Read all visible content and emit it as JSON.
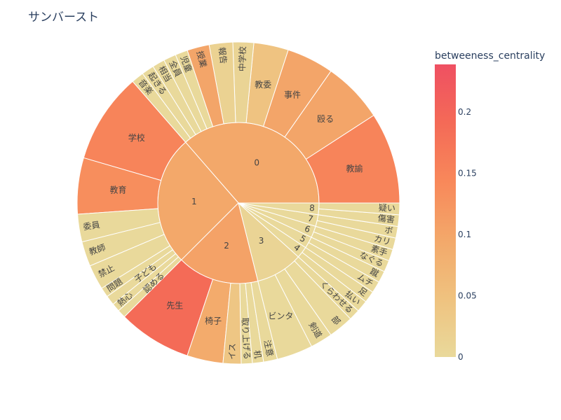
{
  "chart_data": {
    "type": "sunburst",
    "title": "サンバースト",
    "colorbar": {
      "title": "betweeness_centrality",
      "range": [
        0,
        0.239
      ],
      "ticks": [
        0,
        0.05,
        0.1,
        0.15,
        0.2
      ],
      "tick_labels": [
        "0",
        "0.05",
        "0.1",
        "0.15",
        "0.2"
      ],
      "colors": [
        "#e9d99b",
        "#efc27f",
        "#f3a86a",
        "#f8885a",
        "#f46a57",
        "#ef5062"
      ]
    },
    "groups": [
      {
        "label": "0",
        "value_color": 0.095,
        "children": [
          {
            "label": "教諭",
            "value": 33,
            "color_value": 0.15
          },
          {
            "label": "殴る",
            "value": 22,
            "color_value": 0.1
          },
          {
            "label": "事件",
            "value": 17,
            "color_value": 0.1
          },
          {
            "label": "教委",
            "value": 12.5,
            "color_value": 0.045
          },
          {
            "label": "中学校",
            "value": 7.5,
            "color_value": 0.01
          },
          {
            "label": "報告",
            "value": 8.5,
            "color_value": 0.015
          },
          {
            "label": "授業",
            "value": 8,
            "color_value": 0.1
          },
          {
            "label": "児童",
            "value": 4.5,
            "color_value": 0
          },
          {
            "label": "全員",
            "value": 4.5,
            "color_value": 0
          },
          {
            "label": "相当",
            "value": 4.5,
            "color_value": 0
          },
          {
            "label": "起きる",
            "value": 4.5,
            "color_value": 0
          },
          {
            "label": "音楽",
            "value": 4.5,
            "color_value": 0
          }
        ]
      },
      {
        "label": "1",
        "value_color": 0.095,
        "children": [
          {
            "label": "学校",
            "value": 32.7,
            "color_value": 0.15
          },
          {
            "label": "教育",
            "value": 20.3,
            "color_value": 0.135
          },
          {
            "label": "委員",
            "value": 10,
            "color_value": 0
          },
          {
            "label": "教師",
            "value": 9,
            "color_value": 0
          },
          {
            "label": "禁止",
            "value": 9,
            "color_value": 0
          },
          {
            "label": "問題",
            "value": 3.5,
            "color_value": 0
          },
          {
            "label": "子ども",
            "value": 3.5,
            "color_value": 0
          },
          {
            "label": "熱心",
            "value": 3,
            "color_value": 0
          },
          {
            "label": "認める",
            "value": 3,
            "color_value": 0
          }
        ]
      },
      {
        "label": "2",
        "value_color": 0.105,
        "children": [
          {
            "label": "先生",
            "value": 26.5,
            "color_value": 0.19
          },
          {
            "label": "椅子",
            "value": 13,
            "color_value": 0.09
          },
          {
            "label": "イス",
            "value": 6.5,
            "color_value": 0.04
          },
          {
            "label": "取り上げる",
            "value": 4,
            "color_value": 0
          },
          {
            "label": "机",
            "value": 4,
            "color_value": 0
          },
          {
            "label": "注意",
            "value": 5,
            "color_value": 0
          }
        ]
      },
      {
        "label": "3",
        "value_color": 0.01,
        "children": [
          {
            "label": "ビンタ",
            "value": 13,
            "color_value": 0
          },
          {
            "label": "剣道",
            "value": 8,
            "color_value": 0
          },
          {
            "label": "部",
            "value": 9,
            "color_value": 0
          },
          {
            "label": "くらわせる",
            "value": 4,
            "color_value": 0
          }
        ]
      },
      {
        "label": "4",
        "value_color": 0,
        "children": [
          {
            "label": "払い",
            "value": 4.2,
            "color_value": 0
          },
          {
            "label": "足",
            "value": 4.2,
            "color_value": 0
          }
        ]
      },
      {
        "label": "5",
        "value_color": 0,
        "children": [
          {
            "label": "ムチ",
            "value": 4.2,
            "color_value": 0
          },
          {
            "label": "蹴",
            "value": 4.2,
            "color_value": 0
          }
        ]
      },
      {
        "label": "6",
        "value_color": 0,
        "children": [
          {
            "label": "なぐる",
            "value": 4.2,
            "color_value": 0
          },
          {
            "label": "素手",
            "value": 4.2,
            "color_value": 0
          }
        ]
      },
      {
        "label": "7",
        "value_color": 0,
        "children": [
          {
            "label": "カリ",
            "value": 4.2,
            "color_value": 0
          },
          {
            "label": "ボ",
            "value": 4.2,
            "color_value": 0
          }
        ]
      },
      {
        "label": "8",
        "value_color": 0,
        "children": [
          {
            "label": "傷害",
            "value": 4.2,
            "color_value": 0
          },
          {
            "label": "疑い",
            "value": 4.2,
            "color_value": 0
          }
        ]
      }
    ]
  }
}
